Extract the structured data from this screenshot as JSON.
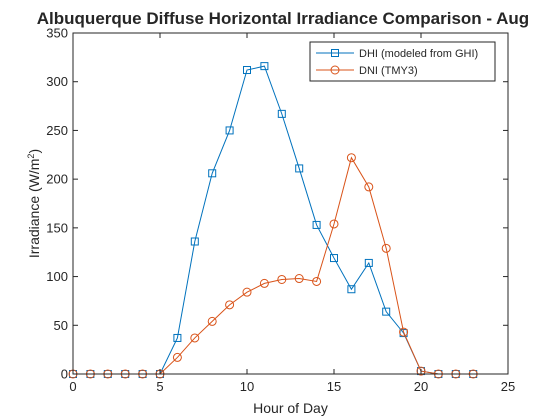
{
  "chart_data": {
    "type": "line",
    "title": "Albuquerque Diffuse Horizontal Irradiance Comparison - Aug",
    "xlabel": "Hour of Day",
    "ylabel": "Irradiance (W/m",
    "ylabel_superscript": "2",
    "ylabel_suffix": ")",
    "xlim": [
      0,
      25
    ],
    "ylim": [
      0,
      350
    ],
    "xticks": [
      0,
      5,
      10,
      15,
      20,
      25
    ],
    "yticks": [
      0,
      50,
      100,
      150,
      200,
      250,
      300,
      350
    ],
    "grid": false,
    "legend_position": "top-right",
    "x": [
      0,
      1,
      2,
      3,
      4,
      5,
      6,
      7,
      8,
      9,
      10,
      11,
      12,
      13,
      14,
      15,
      16,
      17,
      18,
      19,
      20,
      21,
      22,
      23
    ],
    "series": [
      {
        "name": "DHI (modeled from GHI)",
        "color": "#0072BD",
        "marker": "square",
        "values": [
          0,
          0,
          0,
          0,
          0,
          0,
          37,
          136,
          206,
          250,
          312,
          316,
          267,
          211,
          153,
          119,
          87,
          114,
          64,
          42,
          3,
          0,
          0,
          0
        ]
      },
      {
        "name": "DNI (TMY3)",
        "color": "#D95319",
        "marker": "circle",
        "values": [
          0,
          0,
          0,
          0,
          0,
          0,
          17,
          37,
          54,
          71,
          84,
          93,
          97,
          98,
          95,
          154,
          222,
          192,
          129,
          43,
          3,
          0,
          0,
          0
        ]
      }
    ]
  }
}
